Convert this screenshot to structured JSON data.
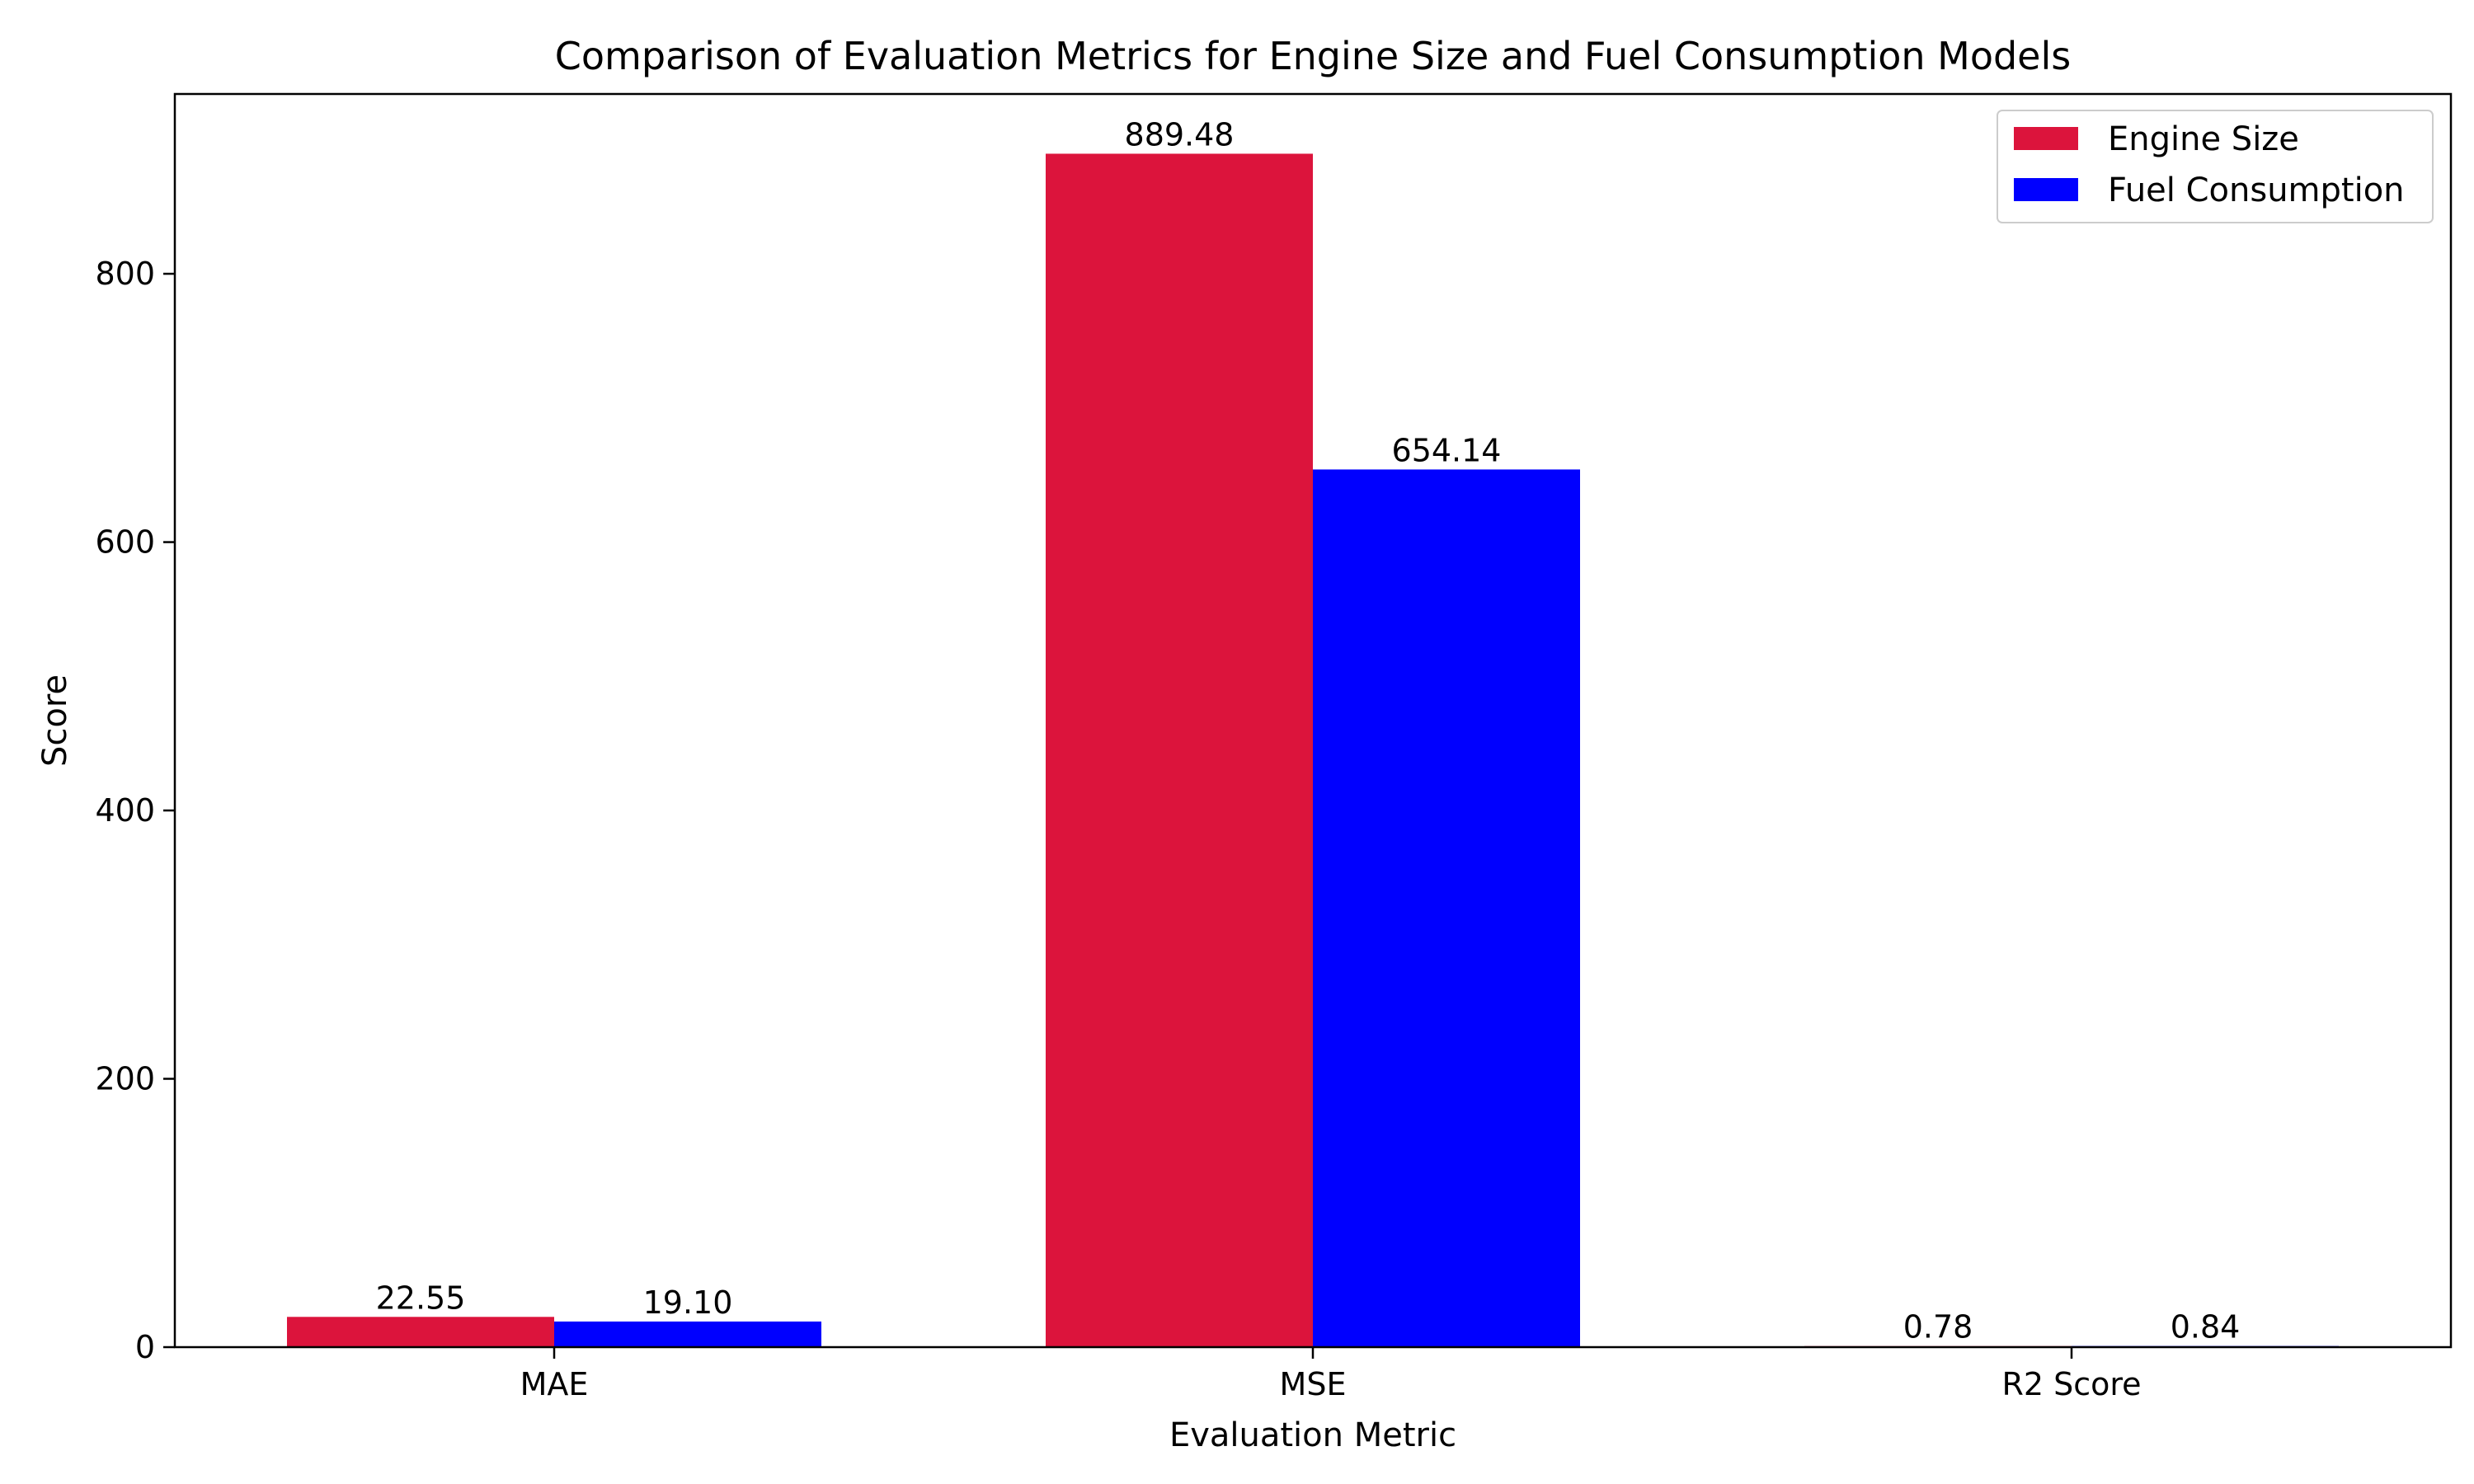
{
  "chart_data": {
    "type": "bar",
    "title": "Comparison of Evaluation Metrics for Engine Size and Fuel Consumption Models",
    "xlabel": "Evaluation Metric",
    "ylabel": "Score",
    "categories": [
      "MAE",
      "MSE",
      "R2 Score"
    ],
    "series": [
      {
        "name": "Engine Size",
        "color": "#dc143c",
        "values": [
          22.55,
          889.48,
          0.78
        ],
        "labels": [
          "22.55",
          "889.48",
          "0.78"
        ]
      },
      {
        "name": "Fuel Consumption",
        "color": "#0000ff",
        "values": [
          19.1,
          654.14,
          0.84
        ],
        "labels": [
          "19.10",
          "654.14",
          "0.84"
        ]
      }
    ],
    "yticks": [
      0,
      200,
      400,
      600,
      800
    ],
    "ylim": [
      0,
      934
    ],
    "grid": false,
    "legend": "top-right"
  }
}
